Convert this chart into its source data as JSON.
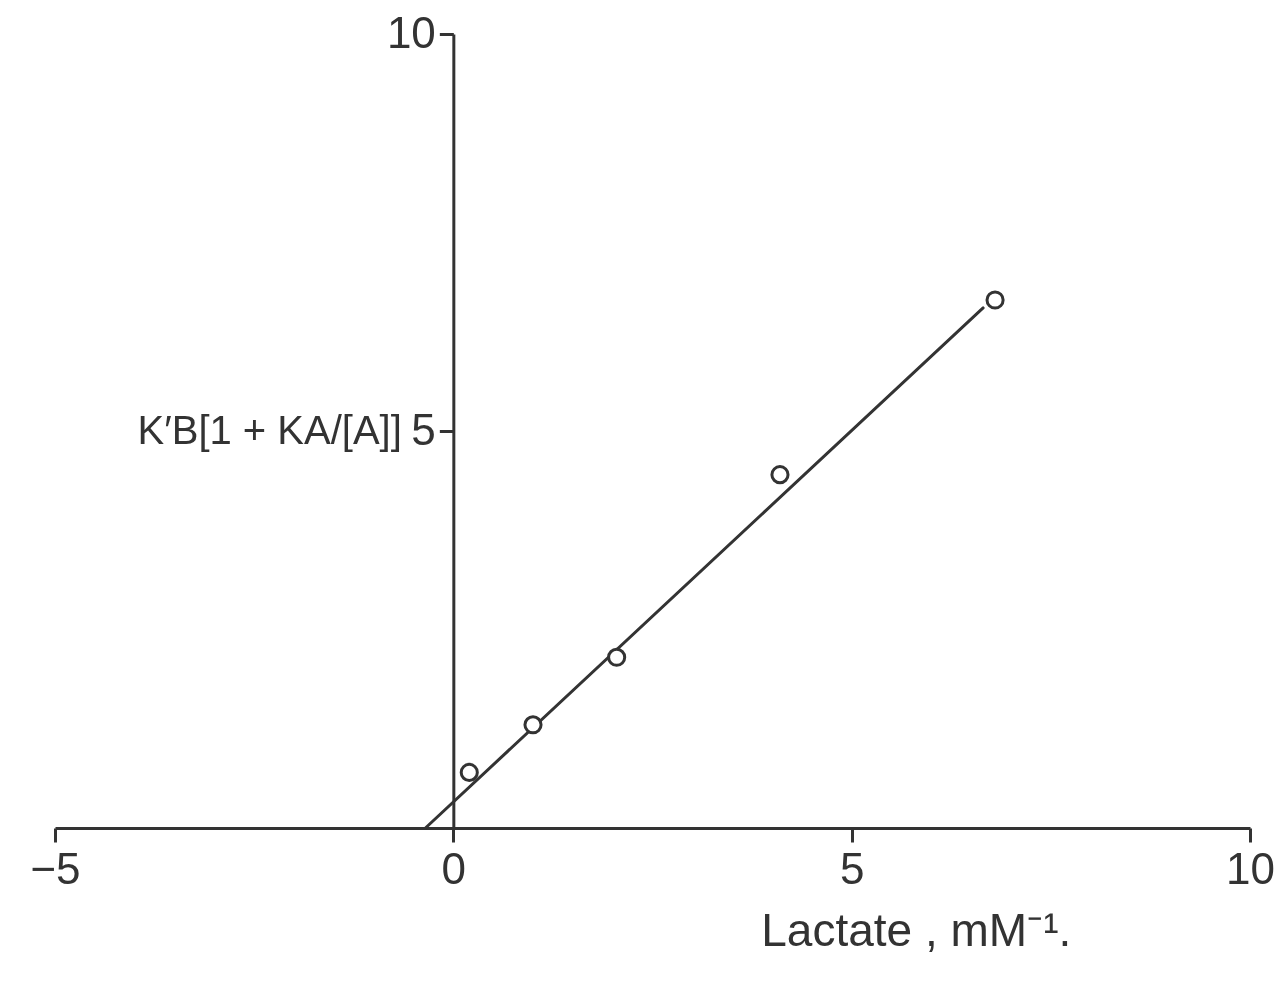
{
  "chart_data": {
    "type": "scatter",
    "xlabel": "Lactate , mM⁻¹.",
    "ylabel": "K′B[1 + KA/[A]]",
    "xlim": [
      -5,
      10
    ],
    "ylim": [
      0,
      10
    ],
    "xticks": [
      -5,
      0,
      5,
      10
    ],
    "yticks": [
      5,
      10
    ],
    "series": [
      {
        "marker": "circle",
        "color": "#333333",
        "x": [
          0.2,
          1.0,
          2.05,
          4.1,
          6.8
        ],
        "values": [
          0.7,
          1.3,
          2.15,
          4.45,
          6.65
        ]
      },
      {
        "type": "line",
        "color": "#333333",
        "x": [
          -0.35,
          6.65
        ],
        "values": [
          0,
          6.55
        ]
      }
    ]
  }
}
